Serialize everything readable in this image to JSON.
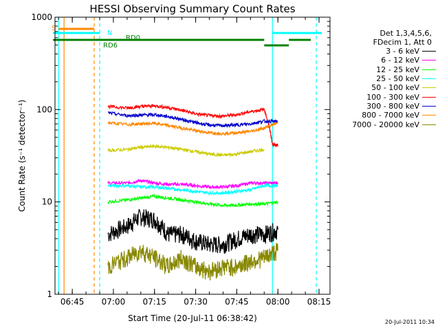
{
  "chart_data": {
    "type": "line",
    "title": "HESSI Observing Summary Count Rates",
    "xlabel": "Start Time (20-Jul-11 06:38:42)",
    "ylabel": "Count Rate (s⁻¹ detector⁻¹)",
    "yscale": "log",
    "ylim": [
      1,
      1000
    ],
    "xlim_minutes": [
      398.7,
      499.0
    ],
    "x_ticks": [
      "06:45",
      "07:00",
      "07:15",
      "07:30",
      "07:45",
      "08:00",
      "08:15"
    ],
    "y_ticks": [
      "1",
      "10",
      "100",
      "1000"
    ],
    "legend_title": [
      "Det 1,3,4,5,6,",
      "FDecim 1, Att 0"
    ],
    "legend_position": "right",
    "series": [
      {
        "name": "3 - 6 keV",
        "color": "#000000",
        "x": [
          "06:58",
          "07:05",
          "07:10",
          "07:15",
          "07:20",
          "07:25",
          "07:30",
          "07:35",
          "07:40",
          "07:45",
          "07:50",
          "07:55",
          "08:00"
        ],
        "y": [
          4.5,
          5.5,
          7,
          6.5,
          4.5,
          4.5,
          3.8,
          3.5,
          3.5,
          4.0,
          4.5,
          4.5,
          5.0
        ]
      },
      {
        "name": "6 - 12 keV",
        "color": "#ff00ff",
        "x": [
          "06:58",
          "07:05",
          "07:10",
          "07:15",
          "07:20",
          "07:25",
          "07:30",
          "07:35",
          "07:40",
          "07:45",
          "07:50",
          "07:55",
          "08:00"
        ],
        "y": [
          16,
          16,
          17,
          16,
          15.5,
          15.5,
          15,
          14.5,
          14.5,
          15,
          16,
          16,
          16
        ]
      },
      {
        "name": "12 - 25 keV",
        "color": "#00ff00",
        "x": [
          "06:58",
          "07:05",
          "07:10",
          "07:15",
          "07:20",
          "07:25",
          "07:30",
          "07:35",
          "07:40",
          "07:45",
          "07:50",
          "07:55",
          "08:00"
        ],
        "y": [
          10,
          10.5,
          11,
          11.5,
          11,
          10.5,
          10,
          9.5,
          9.2,
          9.2,
          9.5,
          9.5,
          10
        ]
      },
      {
        "name": "25 - 50 keV",
        "color": "#00ffff",
        "x": [
          "06:58",
          "07:05",
          "07:10",
          "07:15",
          "07:20",
          "07:25",
          "07:30",
          "07:35",
          "07:40",
          "07:45",
          "07:50",
          "07:55",
          "08:00"
        ],
        "y": [
          15,
          15,
          14.5,
          14.5,
          14,
          13.5,
          13,
          12.5,
          12.5,
          13,
          13.5,
          15,
          15
        ]
      },
      {
        "name": "50 - 100 keV",
        "color": "#cccc00",
        "x": [
          "06:58",
          "07:05",
          "07:10",
          "07:15",
          "07:20",
          "07:25",
          "07:30",
          "07:35",
          "07:40",
          "07:45",
          "07:50",
          "07:55"
        ],
        "y": [
          36,
          37,
          39,
          40,
          39,
          37,
          35,
          33,
          32,
          33,
          35,
          37
        ]
      },
      {
        "name": "100 - 300 keV",
        "color": "#ff0000",
        "x": [
          "06:58",
          "07:05",
          "07:10",
          "07:15",
          "07:20",
          "07:25",
          "07:30",
          "07:35",
          "07:40",
          "07:45",
          "07:50",
          "07:55",
          "07:58",
          "08:00"
        ],
        "y": [
          108,
          104,
          108,
          110,
          105,
          98,
          90,
          86,
          85,
          88,
          95,
          100,
          42,
          41
        ]
      },
      {
        "name": "300 - 800 keV",
        "color": "#0000cc",
        "x": [
          "06:58",
          "07:05",
          "07:10",
          "07:15",
          "07:20",
          "07:25",
          "07:30",
          "07:35",
          "07:40",
          "07:45",
          "07:50",
          "07:55",
          "08:00"
        ],
        "y": [
          92,
          86,
          87,
          88,
          84,
          78,
          72,
          68,
          67,
          68,
          70,
          75,
          74
        ]
      },
      {
        "name": "800 - 7000 keV",
        "color": "#ff8800",
        "x": [
          "06:58",
          "07:05",
          "07:10",
          "07:15",
          "07:20",
          "07:25",
          "07:30",
          "07:35",
          "07:40",
          "07:45",
          "07:50",
          "07:55",
          "08:00"
        ],
        "y": [
          72,
          69,
          70,
          71,
          67,
          63,
          59,
          56,
          55,
          56,
          58,
          63,
          72
        ]
      },
      {
        "name": "7000 - 20000 keV",
        "color": "#888800",
        "x": [
          "06:58",
          "07:05",
          "07:10",
          "07:15",
          "07:20",
          "07:25",
          "07:30",
          "07:35",
          "07:40",
          "07:45",
          "07:50",
          "07:55",
          "08:00"
        ],
        "y": [
          2.0,
          2.5,
          3.0,
          2.5,
          2.0,
          2.5,
          2.0,
          1.8,
          2.0,
          2.0,
          2.3,
          2.5,
          3.0
        ]
      }
    ],
    "flag_bars": [
      {
        "label": "S",
        "color": "#ff8800",
        "segments": [
          [
            "06:40",
            "06:53"
          ]
        ]
      },
      {
        "label": "N",
        "color": "#00ffff",
        "segments": [
          [
            "06:38",
            "06:55"
          ],
          [
            "07:58",
            "08:16"
          ]
        ]
      },
      {
        "label": "RD0",
        "color": "#008000",
        "segments": [
          [
            "06:38",
            "07:55"
          ],
          [
            "07:55",
            "08:04"
          ],
          [
            "08:04",
            "08:12"
          ]
        ]
      },
      {
        "label": "RD6",
        "color": "#008000",
        "segments": []
      }
    ],
    "vertical_lines": [
      {
        "x": "06:40",
        "color": "#00ffff",
        "dashed": false
      },
      {
        "x": "06:42",
        "color": "#ff8800",
        "dashed": false
      },
      {
        "x": "06:53",
        "color": "#ff8800",
        "dashed": true
      },
      {
        "x": "06:55",
        "color": "#00ffff",
        "dashed": true
      },
      {
        "x": "07:58",
        "color": "#00ffff",
        "dashed": false
      },
      {
        "x": "08:14",
        "color": "#00ffff",
        "dashed": true
      }
    ],
    "grid": false
  },
  "timestamp": "20-Jul-2011 10:34"
}
